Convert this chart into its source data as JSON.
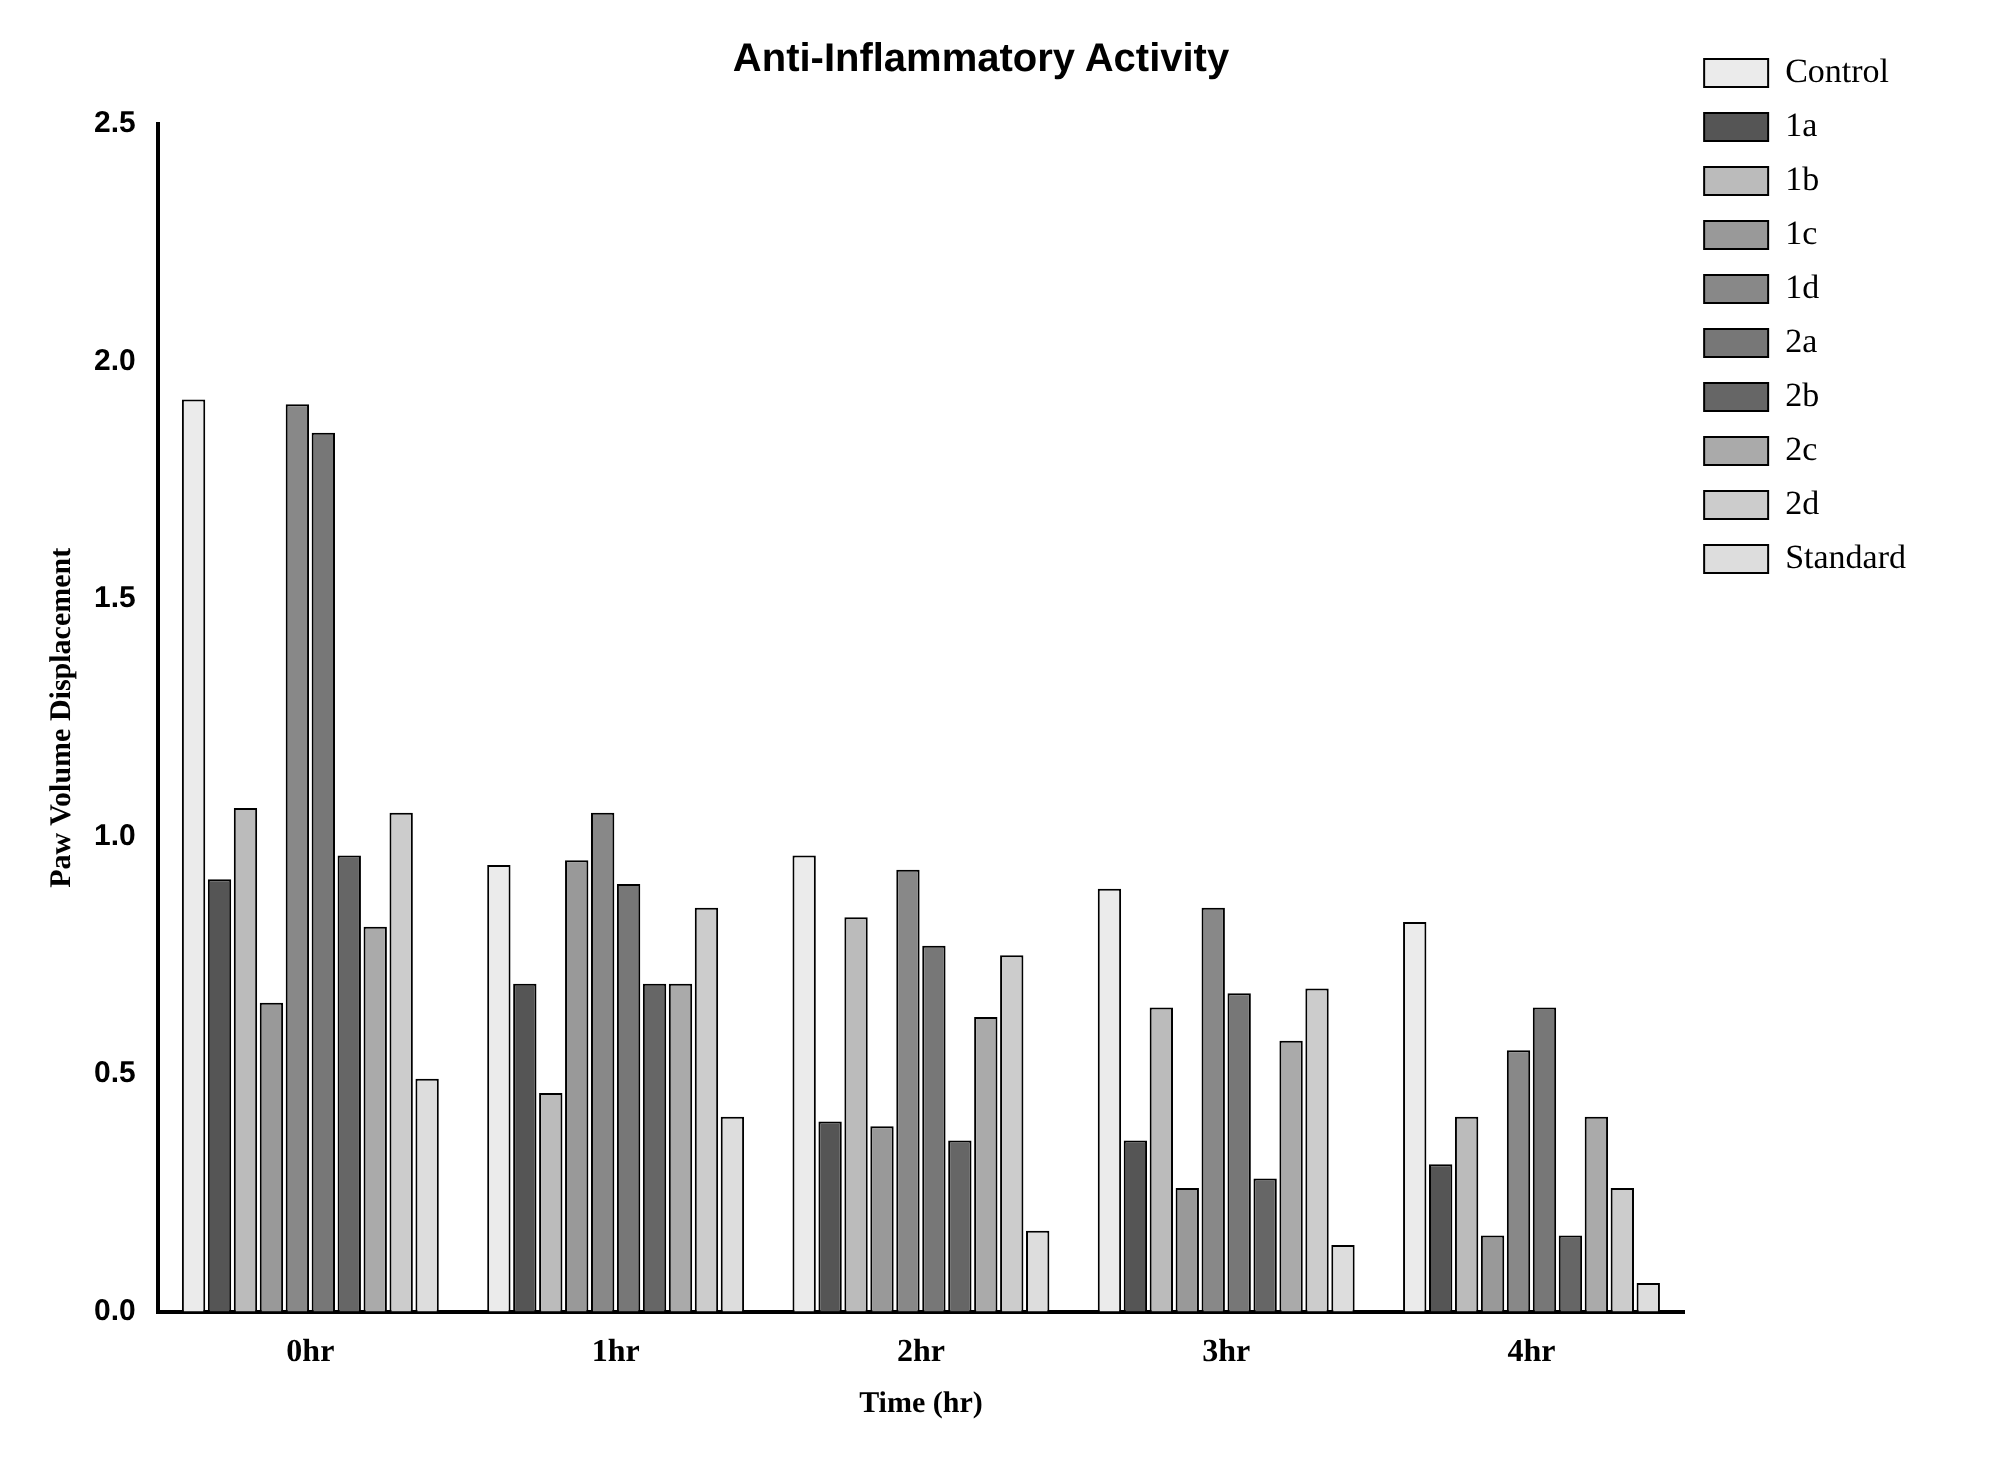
{
  "chart_data": {
    "type": "bar",
    "title": "Anti-Inflammatory Activity",
    "xlabel": "Time (hr)",
    "ylabel": "Paw Volume Displacement",
    "categories": [
      "0hr",
      "1hr",
      "2hr",
      "3hr",
      "4hr"
    ],
    "series": [
      {
        "name": "Control",
        "color": "#ebebeb",
        "values": [
          1.92,
          0.94,
          0.96,
          0.89,
          0.82
        ]
      },
      {
        "name": "1a",
        "color": "#555555",
        "values": [
          0.91,
          0.69,
          0.4,
          0.36,
          0.31
        ]
      },
      {
        "name": "1b",
        "color": "#bbbbbb",
        "values": [
          1.06,
          0.46,
          0.83,
          0.64,
          0.41
        ]
      },
      {
        "name": "1c",
        "color": "#999999",
        "values": [
          0.65,
          0.95,
          0.39,
          0.26,
          0.16
        ]
      },
      {
        "name": "1d",
        "color": "#888888",
        "values": [
          1.91,
          1.05,
          0.93,
          0.85,
          0.55
        ]
      },
      {
        "name": "2a",
        "color": "#777777",
        "values": [
          1.85,
          0.9,
          0.77,
          0.67,
          0.64
        ]
      },
      {
        "name": "2b",
        "color": "#666666",
        "values": [
          0.96,
          0.69,
          0.36,
          0.28,
          0.16
        ]
      },
      {
        "name": "2c",
        "color": "#aaaaaa",
        "values": [
          0.81,
          0.69,
          0.62,
          0.57,
          0.41
        ]
      },
      {
        "name": "2d",
        "color": "#cccccc",
        "values": [
          1.05,
          0.85,
          0.75,
          0.68,
          0.26
        ]
      },
      {
        "name": "Standard",
        "color": "#dddddd",
        "values": [
          0.49,
          0.41,
          0.17,
          0.14,
          0.06
        ]
      }
    ],
    "ylim": [
      0,
      2.5
    ],
    "yticks": [
      {
        "value": 0,
        "label": "0.0"
      },
      {
        "value": 0.5,
        "label": "0.5"
      },
      {
        "value": 1,
        "label": "1.0"
      },
      {
        "value": 1.5,
        "label": "1.5"
      },
      {
        "value": 2,
        "label": "2.0"
      },
      {
        "value": 2.5,
        "label": "2.5"
      }
    ],
    "grid": false,
    "legend": "top right"
  }
}
